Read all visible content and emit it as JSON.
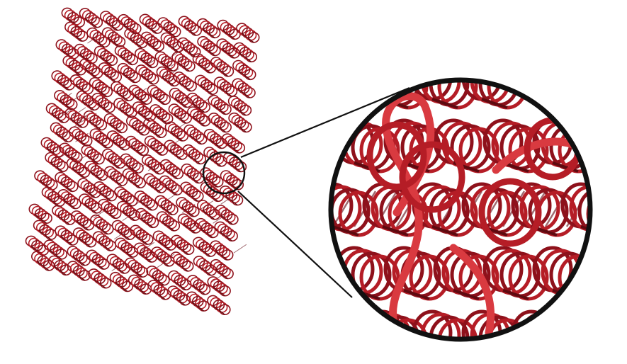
{
  "figure": {
    "background": "#ffffff",
    "colors": {
      "helix_dark": "#5e0a10",
      "helix_mid": "#8e111b",
      "helix_main": "#b51d26",
      "helix_light": "#d93a40",
      "connector": "#a06a70",
      "outline": "#111111"
    },
    "lattice": {
      "rows": 16,
      "helices_per_row": 10
    },
    "zoom": {
      "helix_rows": 5,
      "helix_cols": 6
    }
  }
}
